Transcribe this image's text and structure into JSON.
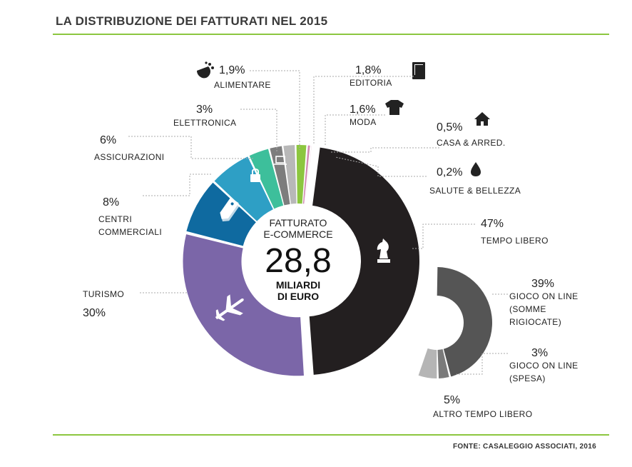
{
  "header": {
    "title": "LA DISTRIBUZIONE DEI FATTURATI NEL 2015"
  },
  "footer": {
    "source": "FONTE: CASALEGGIO ASSOCIATI, 2016"
  },
  "center": {
    "label_line1": "FATTURATO",
    "label_line2": "E-COMMERCE",
    "value": "28,8",
    "unit_line1": "MILIARDI",
    "unit_line2": "DI EURO"
  },
  "chart_data": [
    {
      "type": "pie",
      "total": 28.8,
      "unit": "miliardi di euro",
      "categories": [
        "TEMPO LIBERO",
        "TURISMO",
        "CENTRI COMMERCIALI",
        "ASSICURAZIONI",
        "ELETTRONICA",
        "ALIMENTARE",
        "EDITORIA",
        "MODA",
        "CASA & ARRED.",
        "SALUTE & BELLEZZA"
      ],
      "values": [
        47,
        30,
        8,
        6,
        3,
        1.9,
        1.8,
        1.6,
        0.5,
        0.2
      ],
      "value_labels": [
        "47%",
        "30%",
        "8%",
        "6%",
        "3%",
        "1,9%",
        "1,8%",
        "1,6%",
        "0,5%",
        "0,2%"
      ],
      "label_lines": [
        [
          "TEMPO LIBERO"
        ],
        [
          "TURISMO"
        ],
        [
          "CENTRI",
          "COMMERCIALI"
        ],
        [
          "ASSICURAZIONI"
        ],
        [
          "ELETTRONICA"
        ],
        [
          "ALIMENTARE"
        ],
        [
          "EDITORIA"
        ],
        [
          "MODA"
        ],
        [
          "CASA & ARRED."
        ],
        [
          "SALUTE & BELLEZZA"
        ]
      ],
      "colors": [
        "#231f20",
        "#7b66a8",
        "#0f6aa0",
        "#2e9fc5",
        "#3dbf9b",
        "#7d7d7d",
        "#b8b8b8",
        "#8cc63f",
        "#d08ab0",
        "#e6b0cf"
      ],
      "icons": [
        "chess-knight-icon",
        "airplane-icon",
        "shopping-tags-icon",
        "lock-icon",
        "laptop-icon",
        "food-icon",
        "book-icon",
        "tshirt-icon",
        "house-icon",
        "drop-icon"
      ]
    },
    {
      "type": "pie",
      "parent": "TEMPO LIBERO",
      "categories": [
        "GIOCO ON LINE (SOMME RIGIOCATE)",
        "GIOCO ON LINE (SPESA)",
        "ALTRO TEMPO LIBERO"
      ],
      "values": [
        39,
        3,
        5
      ],
      "value_labels": [
        "39%",
        "3%",
        "5%"
      ],
      "label_lines": [
        [
          "GIOCO ON LINE",
          "(SOMME",
          "RIGIOCATE)"
        ],
        [
          "GIOCO ON LINE",
          "(SPESA)"
        ],
        [
          "ALTRO TEMPO LIBERO"
        ]
      ],
      "colors": [
        "#555555",
        "#7a7a7a",
        "#b5b5b5"
      ]
    }
  ]
}
